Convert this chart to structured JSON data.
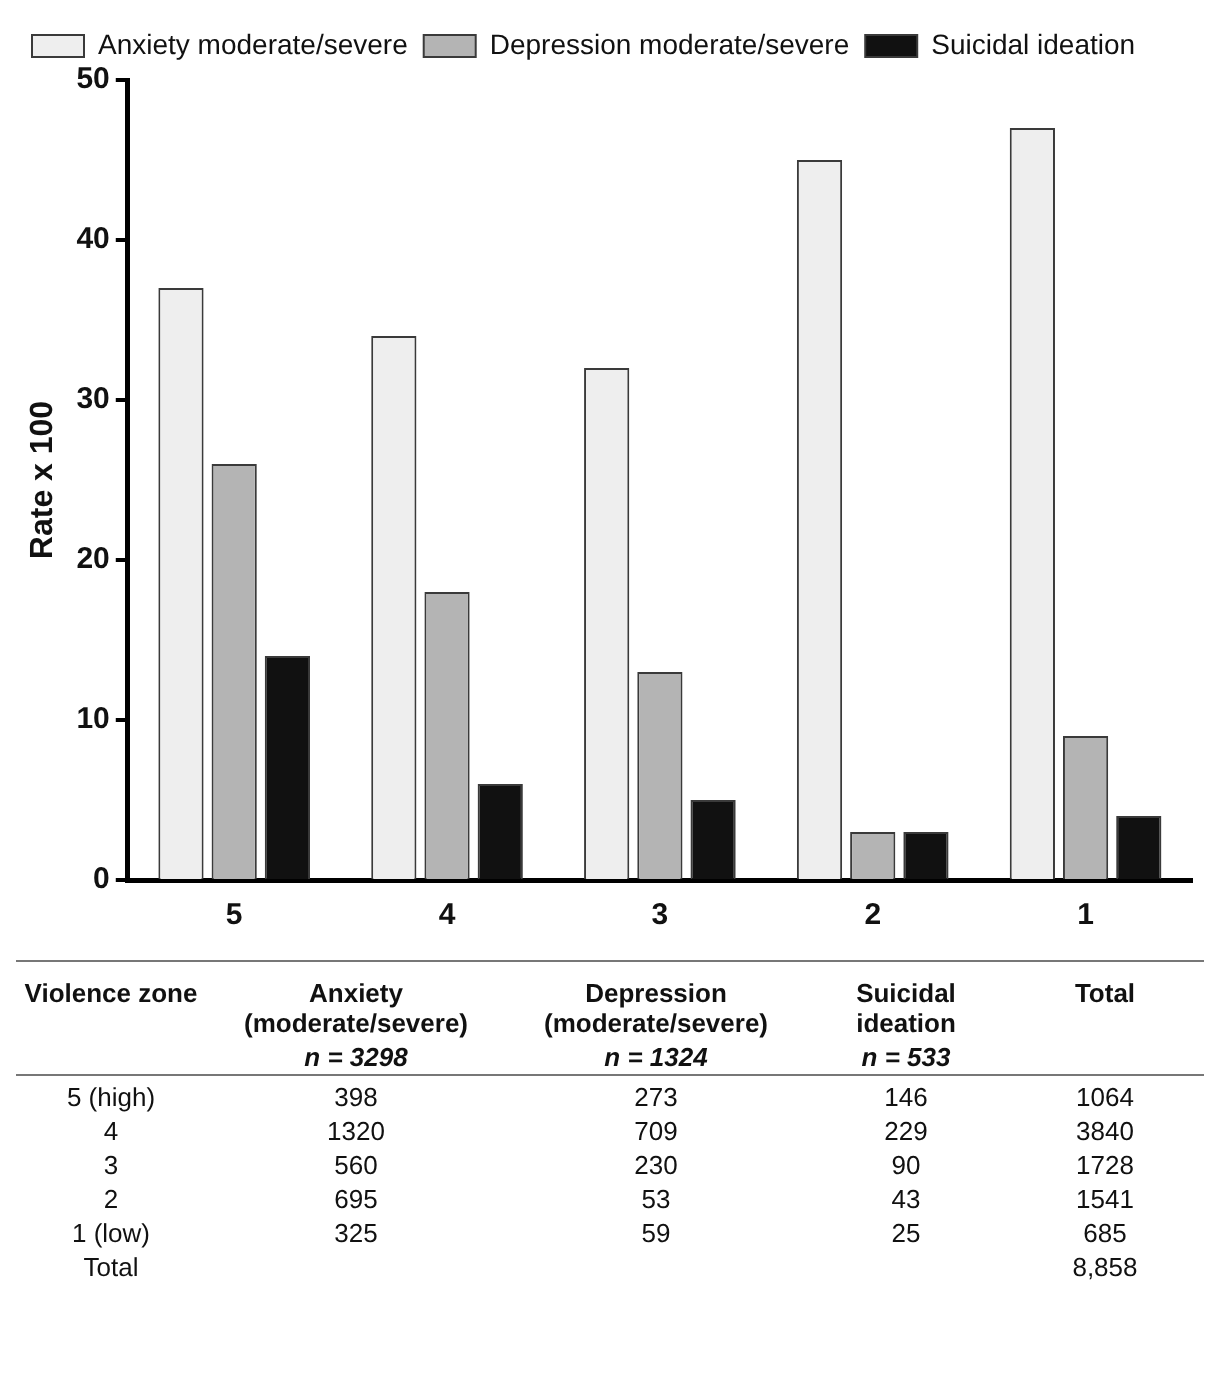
{
  "chart_data": {
    "type": "bar",
    "ylabel": "Rate x 100",
    "categories": [
      "5",
      "4",
      "3",
      "2",
      "1"
    ],
    "series": [
      {
        "name": "Anxiety moderate/severe",
        "color": "#eeeeee",
        "values": [
          37,
          34,
          32,
          45,
          47
        ]
      },
      {
        "name": "Depression moderate/severe",
        "color": "#b4b4b4",
        "values": [
          26,
          18,
          13,
          3,
          9
        ]
      },
      {
        "name": "Suicidal ideation",
        "color": "#111111",
        "values": [
          14,
          6,
          5,
          3,
          4
        ]
      }
    ],
    "ylim": [
      0,
      50
    ],
    "yticks": [
      0,
      10,
      20,
      30,
      40,
      50
    ],
    "grid": false,
    "legend": "top",
    "annotations": [
      "Violence zone",
      "Anxiety (moderate/severe)",
      "Depression (moderate/severe)",
      "Suicidal ideation",
      "Total",
      "n = 3298",
      "n = 1324",
      "n = 533",
      "5 (high)",
      "398",
      "273",
      "146",
      "1064",
      "4",
      "1320",
      "709",
      "229",
      "3840",
      "3",
      "560",
      "230",
      "90",
      "1728",
      "2",
      "695",
      "53",
      "43",
      "1541",
      "1 (low)",
      "325",
      "59",
      "25",
      "685",
      "Total",
      "8,858"
    ]
  }
}
